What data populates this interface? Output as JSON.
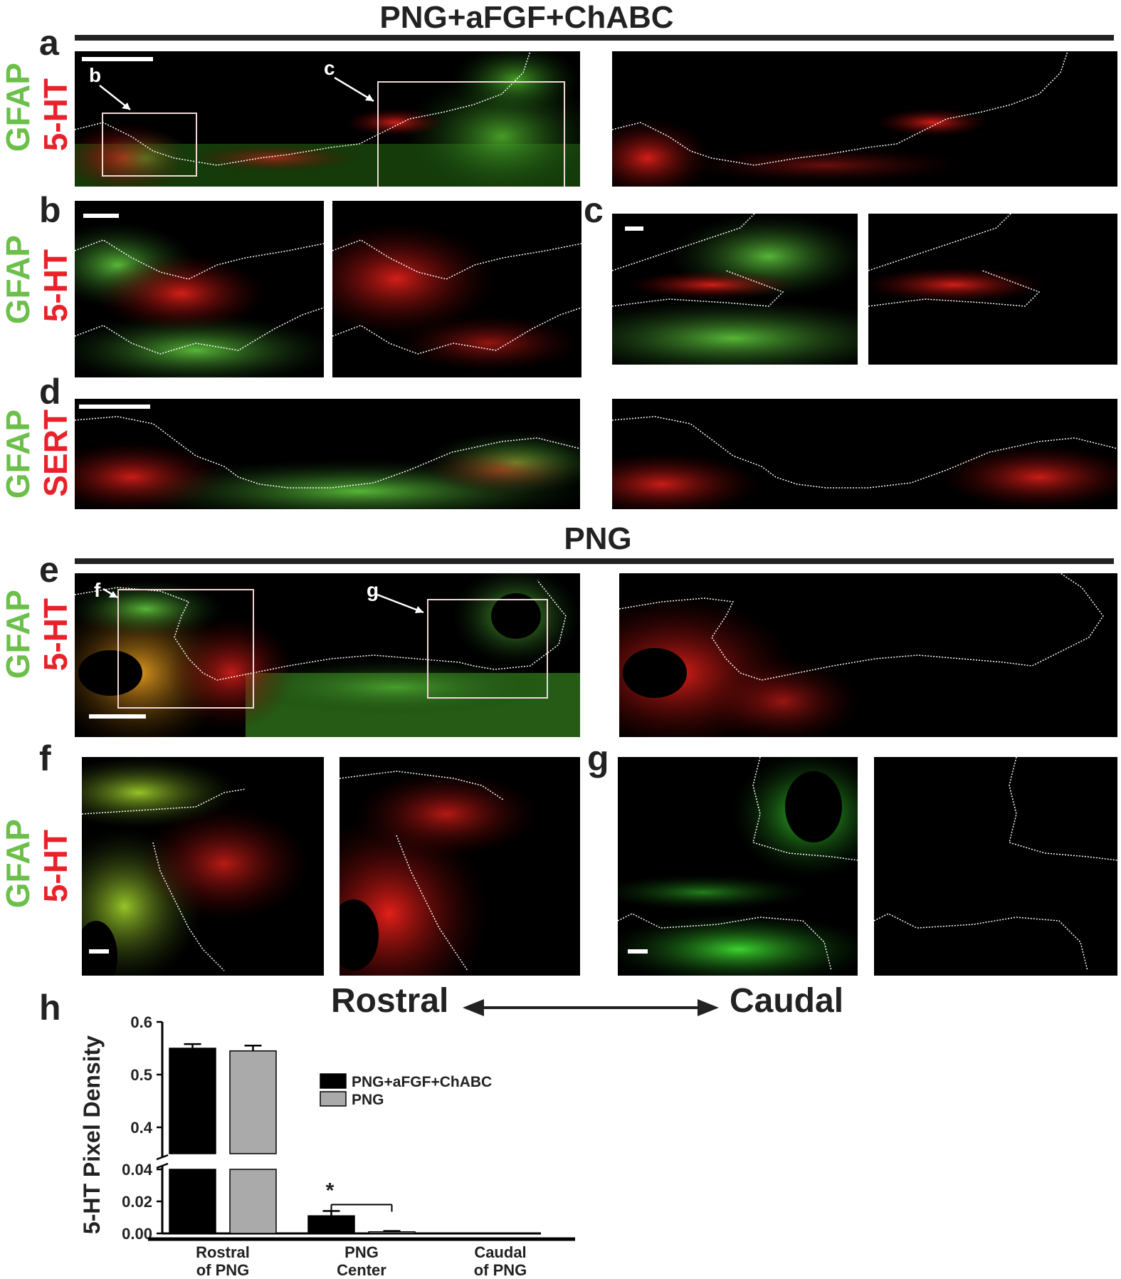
{
  "figure": {
    "group_top_title": "PNG+aFGF+ChABC",
    "group_bottom_title": "PNG",
    "panel_letters": {
      "a": "a",
      "b": "b",
      "c": "c",
      "d": "d",
      "e": "e",
      "f": "f",
      "g": "g",
      "h": "h"
    },
    "inset_letters": {
      "a_b": "b",
      "a_c": "c",
      "e_f": "f",
      "e_g": "g"
    },
    "stain_labels": {
      "a": {
        "green": "GFAP",
        "red": "5-HT"
      },
      "b": {
        "green": "GFAP",
        "red": "5-HT"
      },
      "d": {
        "green": "GFAP",
        "red": "SERT"
      },
      "e": {
        "green": "GFAP",
        "red": "5-HT"
      },
      "f": {
        "green": "GFAP",
        "red": "5-HT"
      }
    },
    "direction": {
      "left": "Rostral",
      "right": "Caudal"
    },
    "colors": {
      "gfap": "#6cbf4a",
      "serotonin": "#e8222a",
      "panel_bg": "#000000",
      "outline": "#ffffff"
    }
  },
  "chart_data": {
    "type": "bar",
    "ylabel": "5-HT Pixel Density",
    "categories": [
      "Rostral\nof PNG",
      "PNG\nCenter",
      "Caudal\nof PNG"
    ],
    "category_lines": [
      [
        "Rostral",
        "of PNG"
      ],
      [
        "PNG",
        "Center"
      ],
      [
        "Caudal",
        "of PNG"
      ]
    ],
    "series": [
      {
        "name": "PNG+aFGF+ChABC",
        "color": "#000000",
        "values": [
          0.55,
          0.011,
          0.0
        ],
        "errors": [
          0.008,
          0.003,
          0.0
        ]
      },
      {
        "name": "PNG",
        "color": "#aaaaaa",
        "values": [
          0.545,
          0.001,
          0.0
        ],
        "errors": [
          0.01,
          0.0005,
          0.0
        ]
      }
    ],
    "broken_axis": true,
    "ylim_lower": [
      0,
      0.04
    ],
    "ylim_upper": [
      0.35,
      0.6
    ],
    "yticks_lower": [
      "0.00",
      "0.02",
      "0.04"
    ],
    "yticks_upper": [
      "0.4",
      "0.5",
      "0.6"
    ],
    "significance": {
      "category": "PNG\nCenter",
      "marker": "*"
    },
    "legend_position": "right of plot, upper-middle"
  }
}
